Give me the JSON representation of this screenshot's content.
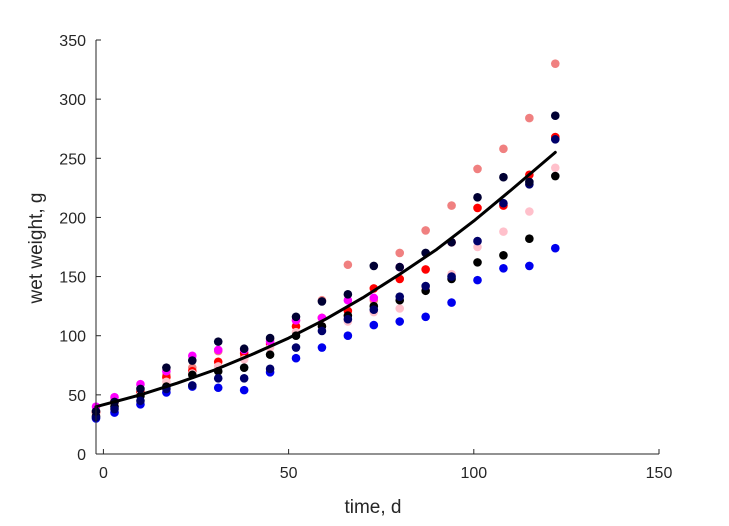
{
  "chart_data": {
    "type": "scatter",
    "xlabel": "time, d",
    "ylabel": "wet weight, g",
    "xlim": [
      -2,
      150
    ],
    "ylim": [
      0,
      350
    ],
    "xticks": [
      0,
      50,
      100,
      150
    ],
    "yticks": [
      0,
      50,
      100,
      150,
      200,
      250,
      300,
      350
    ],
    "grid": false,
    "legend": "none",
    "series": [
      {
        "color": "#F08080",
        "x": [
          -2,
          3,
          10,
          17,
          24,
          31,
          38,
          45,
          52,
          59,
          66,
          73,
          80,
          87,
          94,
          101,
          108,
          115,
          122
        ],
        "y": [
          36,
          45,
          53,
          67,
          73,
          87,
          82,
          97,
          113,
          130,
          160,
          130,
          170,
          189,
          210,
          241,
          258,
          284,
          330
        ]
      },
      {
        "color": "#FF0000",
        "x": [
          -2,
          3,
          10,
          17,
          24,
          31,
          38,
          45,
          52,
          59,
          66,
          73,
          80,
          87,
          94,
          101,
          108,
          115,
          122
        ],
        "y": [
          35,
          44,
          52,
          65,
          70,
          78,
          85,
          93,
          108,
          115,
          121,
          140,
          148,
          156,
          179,
          208,
          210,
          236,
          268
        ]
      },
      {
        "color": "#FFC0CB",
        "x": [
          -2,
          3,
          10,
          17,
          24,
          31,
          38,
          45,
          52,
          59,
          66,
          73,
          80,
          87,
          94,
          101,
          108,
          115,
          122
        ],
        "y": [
          33,
          42,
          50,
          61,
          68,
          74,
          80,
          90,
          103,
          108,
          112,
          120,
          123,
          140,
          152,
          175,
          188,
          205,
          242
        ]
      },
      {
        "color": "#FF00FF",
        "x": [
          -2,
          3,
          10,
          17,
          24,
          31,
          38,
          45,
          52,
          59,
          66,
          73,
          80
        ],
        "y": [
          40,
          48,
          59,
          70,
          83,
          88,
          88,
          95,
          113,
          115,
          130,
          132,
          158
        ]
      },
      {
        "color": "#000000",
        "x": [
          -2,
          3,
          10,
          17,
          24,
          31,
          38,
          45,
          52,
          59,
          66,
          73,
          80,
          87,
          94,
          101,
          108,
          115,
          122
        ],
        "y": [
          32,
          40,
          49,
          57,
          67,
          70,
          73,
          84,
          100,
          108,
          117,
          125,
          130,
          138,
          148,
          162,
          168,
          182,
          235
        ]
      },
      {
        "color": "#0000EE",
        "x": [
          -2,
          3,
          10,
          17,
          24,
          31,
          38,
          45,
          52,
          59,
          66,
          73,
          80,
          87,
          94,
          101,
          108,
          115,
          122
        ],
        "y": [
          30,
          35,
          42,
          52,
          57,
          56,
          54,
          69,
          81,
          90,
          100,
          109,
          112,
          116,
          128,
          147,
          157,
          159,
          174
        ]
      },
      {
        "color": "#00006A",
        "x": [
          -2,
          3,
          10,
          17,
          24,
          31,
          38,
          45,
          52,
          59,
          66,
          73,
          80,
          87,
          94,
          101,
          108,
          115,
          122
        ],
        "y": [
          31,
          38,
          45,
          55,
          58,
          64,
          64,
          72,
          90,
          104,
          114,
          122,
          133,
          142,
          150,
          180,
          212,
          228,
          266
        ]
      },
      {
        "color": "#000033",
        "x": [
          -2,
          3,
          10,
          17,
          24,
          31,
          38,
          45,
          52,
          59,
          66,
          73,
          80,
          87,
          94,
          101,
          108,
          115,
          122
        ],
        "y": [
          36,
          44,
          55,
          73,
          79,
          95,
          89,
          98,
          116,
          129,
          135,
          159,
          158,
          170,
          179,
          217,
          234,
          230,
          286
        ]
      }
    ],
    "fit_line": {
      "color": "#000000",
      "x": [
        -2,
        10,
        20,
        30,
        40,
        50,
        60,
        70,
        80,
        90,
        100,
        110,
        122
      ],
      "y": [
        40,
        50,
        60,
        71,
        84,
        98,
        114,
        132,
        152,
        173,
        197,
        223,
        255
      ]
    }
  }
}
